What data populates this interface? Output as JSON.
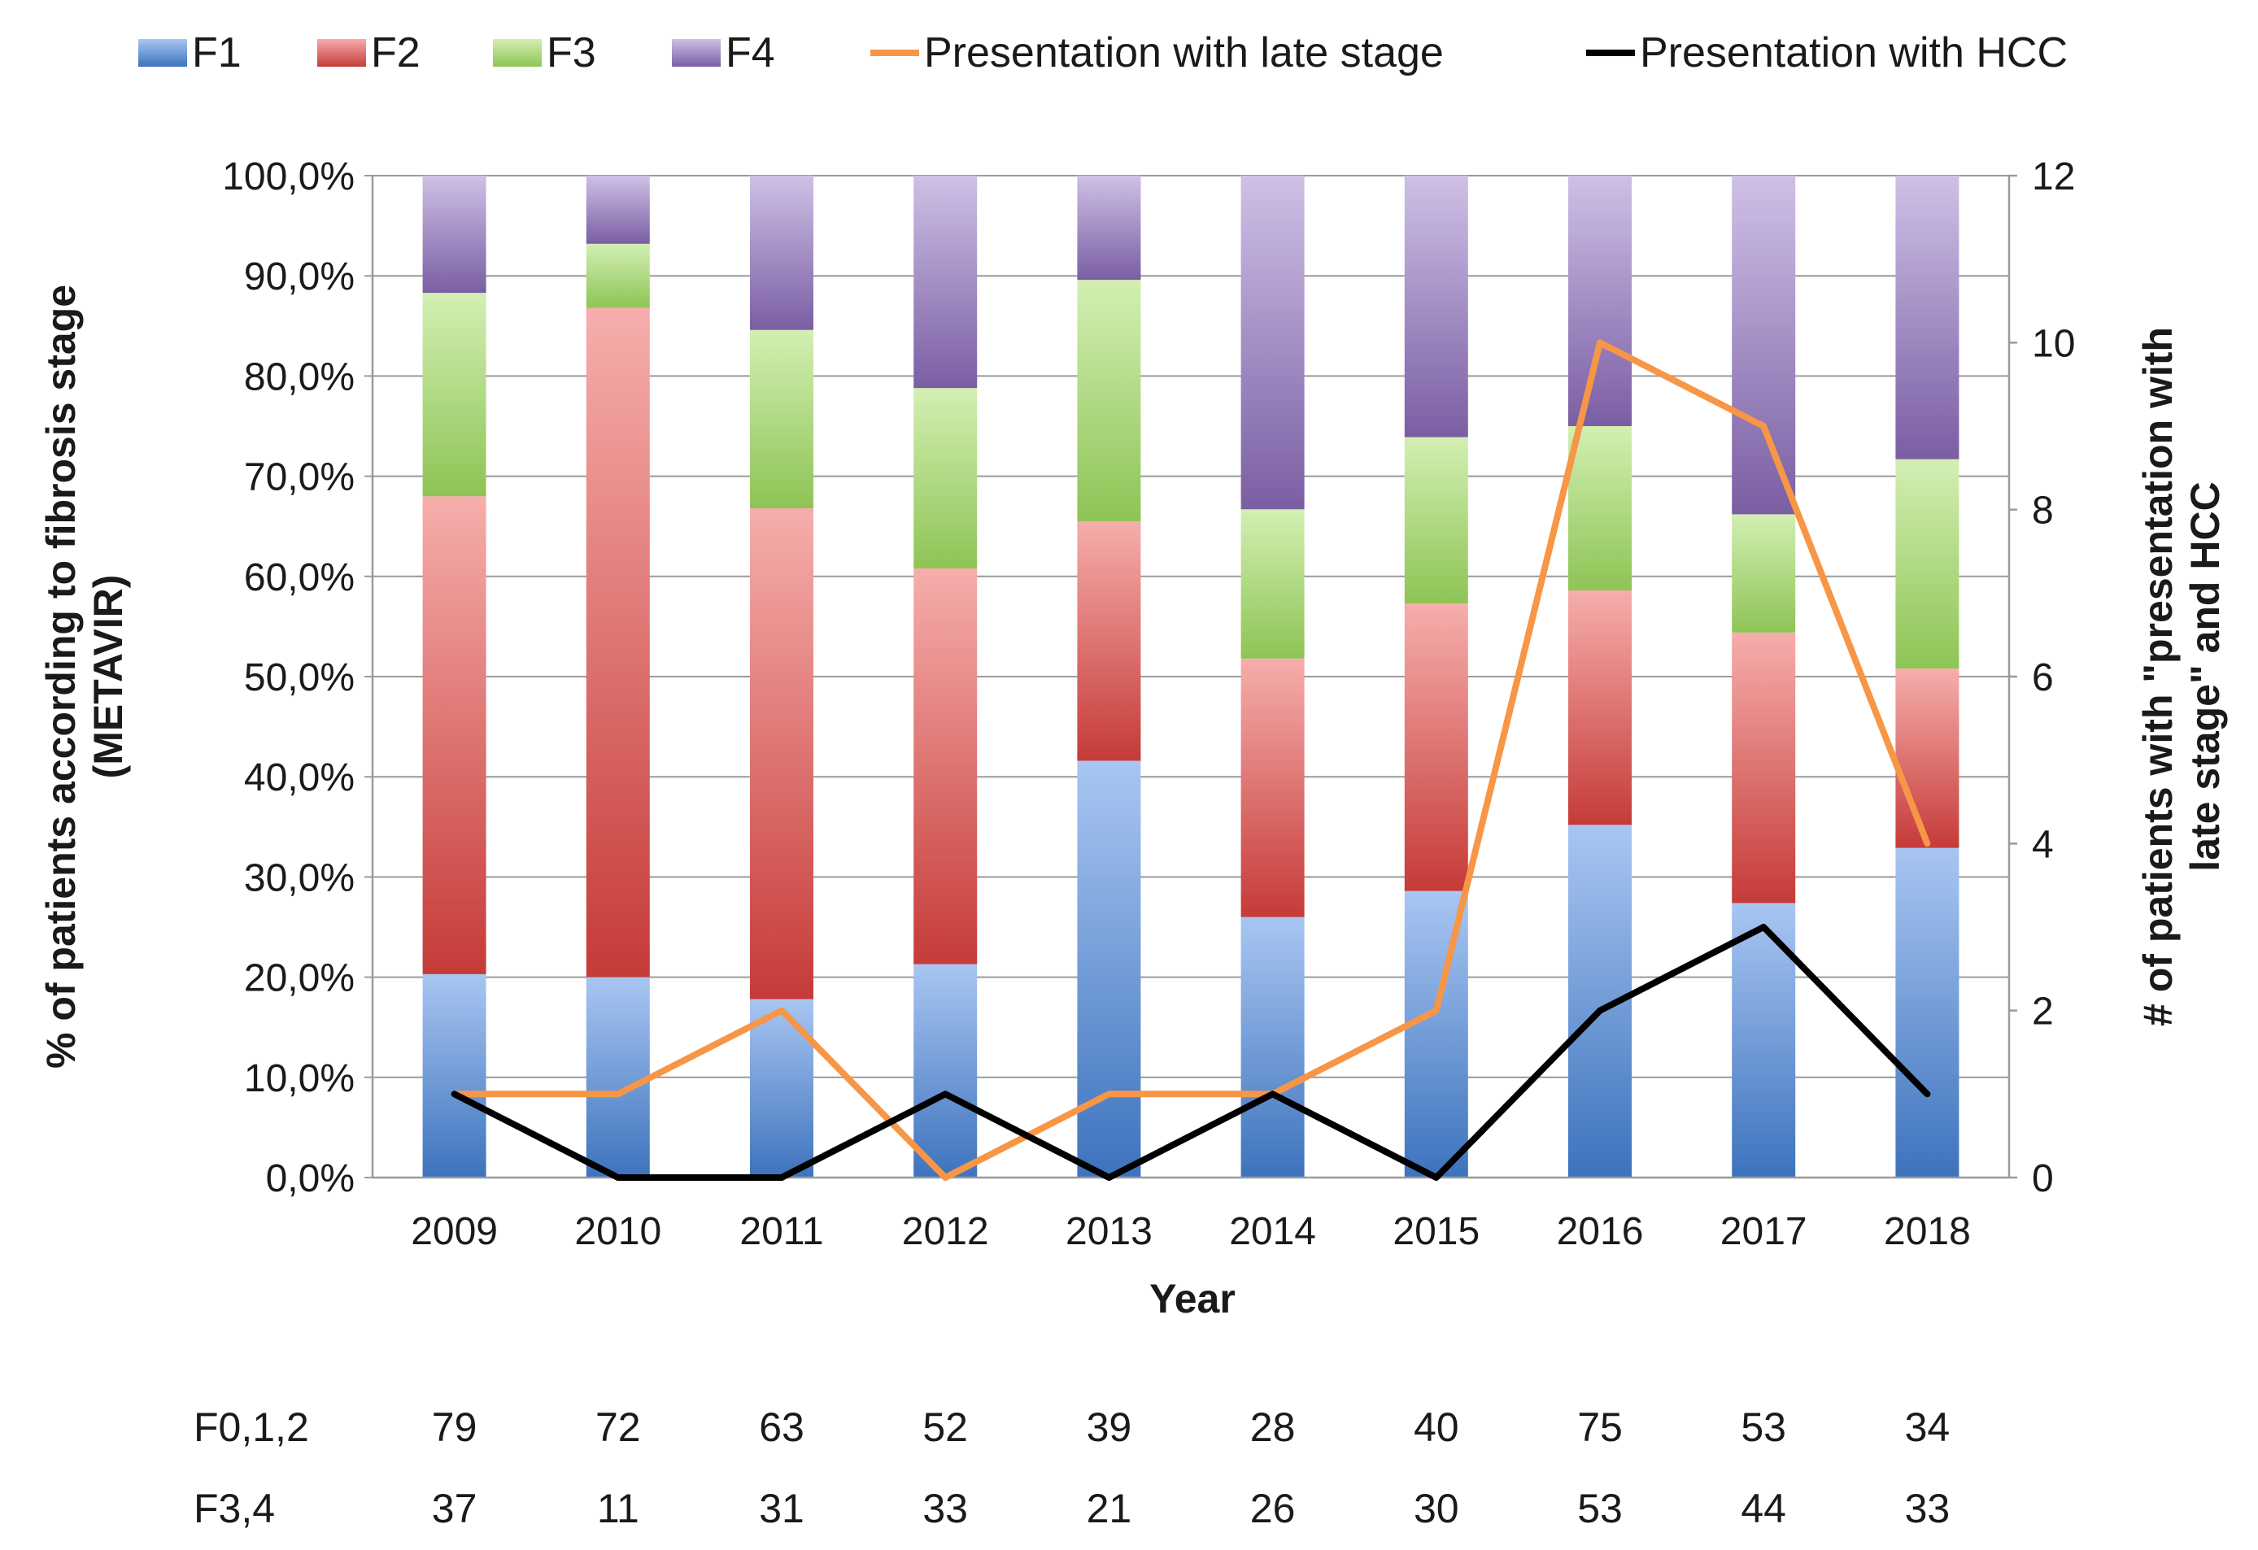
{
  "chart_data": {
    "type": "bar",
    "stacked": true,
    "categories": [
      "2009",
      "2010",
      "2011",
      "2012",
      "2013",
      "2014",
      "2015",
      "2016",
      "2017",
      "2018"
    ],
    "series": [
      {
        "name": "F1",
        "color": "#4f81bd",
        "values": [
          20.3,
          20.0,
          17.8,
          21.3,
          41.6,
          26.0,
          28.6,
          35.2,
          27.4,
          32.9
        ]
      },
      {
        "name": "F2",
        "color": "#c0504d",
        "values": [
          47.7,
          66.8,
          49.0,
          39.5,
          23.9,
          25.8,
          28.7,
          23.4,
          27.0,
          17.9
        ]
      },
      {
        "name": "F3",
        "color": "#9bbb59",
        "values": [
          20.3,
          6.4,
          17.8,
          18.0,
          24.1,
          14.9,
          16.6,
          16.4,
          11.8,
          20.9
        ]
      },
      {
        "name": "F4",
        "color": "#8064a2",
        "values": [
          11.7,
          6.8,
          15.4,
          21.2,
          10.4,
          33.3,
          26.1,
          25.0,
          33.8,
          28.3
        ]
      }
    ],
    "lines": [
      {
        "name": "Presentation with late stage",
        "color": "#f79646",
        "values": [
          1,
          1,
          2,
          0,
          1,
          1,
          2,
          10,
          9,
          4
        ]
      },
      {
        "name": "Presentation with HCC",
        "color": "#000000",
        "values": [
          1,
          0,
          0,
          1,
          0,
          1,
          0,
          2,
          3,
          1
        ]
      }
    ],
    "xlabel": "Year",
    "ylabel": [
      "% of patients according to fibrosis stage",
      "(METAVIR)"
    ],
    "y2label": [
      "# of patients with \"presentation with",
      "late stage\" and HCC"
    ],
    "ylim": [
      0,
      100
    ],
    "y2lim": [
      0,
      12
    ],
    "yticks": [
      "0,0%",
      "10,0%",
      "20,0%",
      "30,0%",
      "40,0%",
      "50,0%",
      "60,0%",
      "70,0%",
      "80,0%",
      "90,0%",
      "100,0%"
    ],
    "y2ticks": [
      "0",
      "2",
      "4",
      "6",
      "8",
      "10",
      "12"
    ],
    "legend_position": "top",
    "grid": true,
    "table": [
      {
        "label": "F0,1,2",
        "values": [
          "79",
          "72",
          "63",
          "52",
          "39",
          "28",
          "40",
          "75",
          "53",
          "34"
        ]
      },
      {
        "label": "F3,4",
        "values": [
          "37",
          "11",
          "31",
          "33",
          "21",
          "26",
          "30",
          "53",
          "44",
          "33"
        ]
      }
    ]
  }
}
